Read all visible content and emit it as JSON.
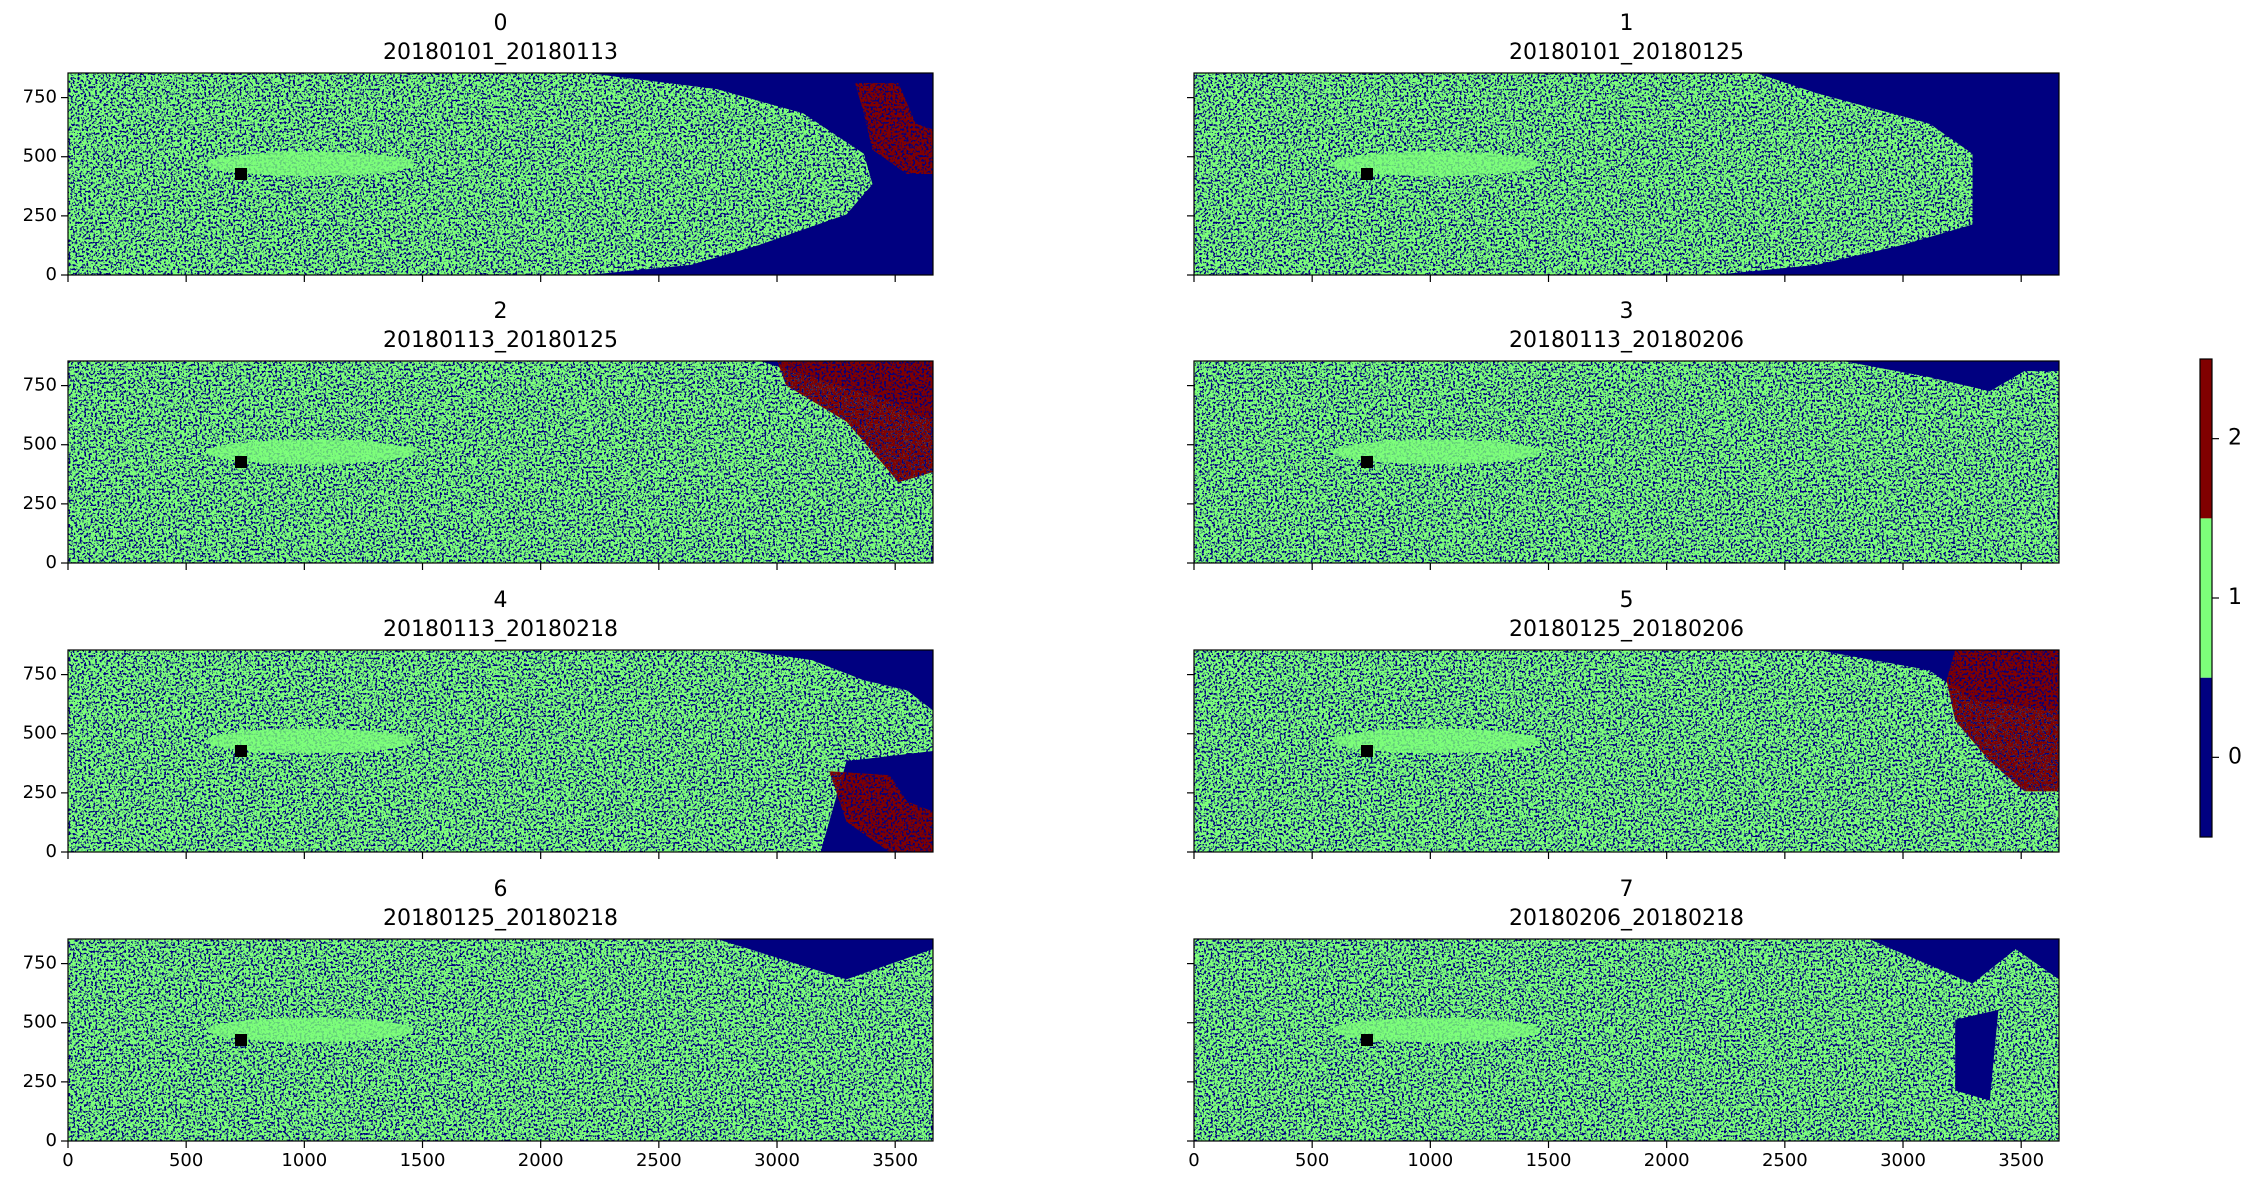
{
  "chart_data": [
    {
      "type": "image",
      "title": "0",
      "subtitle": "20180101_20180113",
      "xlim": [
        0,
        3660
      ],
      "ylim": [
        0,
        854
      ],
      "xticks": [
        0,
        500,
        1000,
        1500,
        2000,
        2500,
        3000,
        3500
      ],
      "yticks": [
        0,
        250,
        500,
        750
      ]
    },
    {
      "type": "image",
      "title": "1",
      "subtitle": "20180101_20180125",
      "xlim": [
        0,
        3660
      ],
      "ylim": [
        0,
        854
      ],
      "xticks": [
        0,
        500,
        1000,
        1500,
        2000,
        2500,
        3000,
        3500
      ],
      "yticks": [
        0,
        250,
        500,
        750
      ]
    },
    {
      "type": "image",
      "title": "2",
      "subtitle": "20180113_20180125",
      "xlim": [
        0,
        3660
      ],
      "ylim": [
        0,
        854
      ],
      "xticks": [
        0,
        500,
        1000,
        1500,
        2000,
        2500,
        3000,
        3500
      ],
      "yticks": [
        0,
        250,
        500,
        750
      ]
    },
    {
      "type": "image",
      "title": "3",
      "subtitle": "20180113_20180206",
      "xlim": [
        0,
        3660
      ],
      "ylim": [
        0,
        854
      ],
      "xticks": [
        0,
        500,
        1000,
        1500,
        2000,
        2500,
        3000,
        3500
      ],
      "yticks": [
        0,
        250,
        500,
        750
      ]
    },
    {
      "type": "image",
      "title": "4",
      "subtitle": "20180113_20180218",
      "xlim": [
        0,
        3660
      ],
      "ylim": [
        0,
        854
      ],
      "xticks": [
        0,
        500,
        1000,
        1500,
        2000,
        2500,
        3000,
        3500
      ],
      "yticks": [
        0,
        250,
        500,
        750
      ]
    },
    {
      "type": "image",
      "title": "5",
      "subtitle": "20180125_20180206",
      "xlim": [
        0,
        3660
      ],
      "ylim": [
        0,
        854
      ],
      "xticks": [
        0,
        500,
        1000,
        1500,
        2000,
        2500,
        3000,
        3500
      ],
      "yticks": [
        0,
        250,
        500,
        750
      ]
    },
    {
      "type": "image",
      "title": "6",
      "subtitle": "20180125_20180218",
      "xlim": [
        0,
        3660
      ],
      "ylim": [
        0,
        854
      ],
      "xticks": [
        0,
        500,
        1000,
        1500,
        2000,
        2500,
        3000,
        3500
      ],
      "yticks": [
        0,
        250,
        500,
        750
      ]
    },
    {
      "type": "image",
      "title": "7",
      "subtitle": "20180206_20180218",
      "xlim": [
        0,
        3660
      ],
      "ylim": [
        0,
        854
      ],
      "xticks": [
        0,
        500,
        1000,
        1500,
        2000,
        2500,
        3000,
        3500
      ],
      "yticks": [
        0,
        250,
        500,
        750
      ]
    }
  ],
  "colorbar": {
    "lim": [
      -0.5,
      2.5
    ],
    "ticks": [
      0,
      1,
      2
    ],
    "colors": [
      "#000080",
      "#7dff7a",
      "#800000"
    ]
  }
}
